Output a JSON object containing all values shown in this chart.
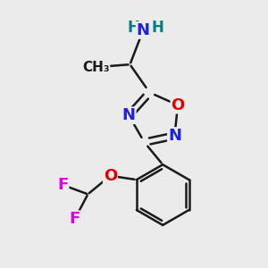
{
  "background_color": "#ebebeb",
  "bond_color": "#1a1a1a",
  "bond_width": 1.8,
  "colors": {
    "N": "#2020e0",
    "O": "#e00000",
    "F": "#e000e0",
    "H": "#008080",
    "C": "#1a1a1a"
  },
  "figsize": [
    3.0,
    3.0
  ],
  "dpi": 100,
  "font_size": 13
}
